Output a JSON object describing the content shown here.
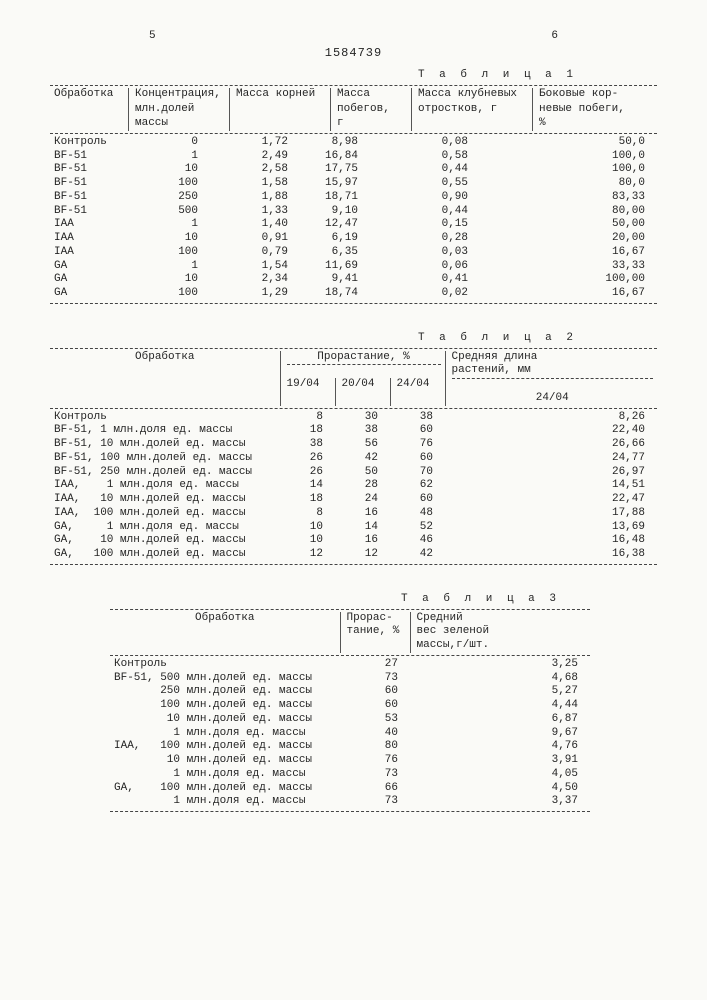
{
  "page_left": "5",
  "doc_number": "1584739",
  "page_right": "6",
  "table1": {
    "title": "Т а б л и ц а 1",
    "headers": {
      "c1": "Обработка",
      "c2a": "Концентрация,",
      "c2b": "млн.долей",
      "c2c": "массы",
      "c3": "Масса корней",
      "c4a": "Масса",
      "c4b": "побегов,",
      "c4c": "г",
      "c5a": "Масса клубневых",
      "c5b": "отростков, г",
      "c6a": "Боковые кор-",
      "c6b": "невые побеги,",
      "c6c": "%"
    },
    "rows": [
      [
        "Контроль",
        "0",
        "1,72",
        "8,98",
        "0,08",
        "50,0"
      ],
      [
        "BF-51",
        "1",
        "2,49",
        "16,84",
        "0,58",
        "100,0"
      ],
      [
        "BF-51",
        "10",
        "2,58",
        "17,75",
        "0,44",
        "100,0"
      ],
      [
        "BF-51",
        "100",
        "1,58",
        "15,97",
        "0,55",
        "80,0"
      ],
      [
        "BF-51",
        "250",
        "1,88",
        "18,71",
        "0,90",
        "83,33"
      ],
      [
        "BF-51",
        "500",
        "1,33",
        "9,10",
        "0,44",
        "80,00"
      ],
      [
        "IAA",
        "1",
        "1,40",
        "12,47",
        "0,15",
        "50,00"
      ],
      [
        "IAA",
        "10",
        "0,91",
        "6,19",
        "0,28",
        "20,00"
      ],
      [
        "IAA",
        "100",
        "0,79",
        "6,35",
        "0,03",
        "16,67"
      ],
      [
        "GA",
        "1",
        "1,54",
        "11,69",
        "0,06",
        "33,33"
      ],
      [
        "GA",
        "10",
        "2,34",
        "9,41",
        "0,41",
        "100,00"
      ],
      [
        "GA",
        "100",
        "1,29",
        "18,74",
        "0,02",
        "16,67"
      ]
    ]
  },
  "table2": {
    "title": "Т а б л и ц а 2",
    "headers": {
      "c1": "Обработка",
      "c2": "Прорастание, %",
      "c2a": "19/04",
      "c2b": "20/04",
      "c2c": "24/04",
      "c3a": "Средняя длина",
      "c3b": "растений, мм",
      "c3c": "24/04"
    },
    "rows": [
      [
        "Контроль",
        "8",
        "30",
        "38",
        "8,26"
      ],
      [
        "BF-51, 1 млн.доля ед. массы",
        "18",
        "38",
        "60",
        "22,40"
      ],
      [
        "BF-51, 10 млн.долей ед. массы",
        "38",
        "56",
        "76",
        "26,66"
      ],
      [
        "BF-51, 100 млн.долей ед. массы",
        "26",
        "42",
        "60",
        "24,77"
      ],
      [
        "BF-51, 250 млн.долей ед. массы",
        "26",
        "50",
        "70",
        "26,97"
      ],
      [
        "IAA,    1 млн.доля ед. массы",
        "14",
        "28",
        "62",
        "14,51"
      ],
      [
        "IAA,   10 млн.долей ед. массы",
        "18",
        "24",
        "60",
        "22,47"
      ],
      [
        "IAA,  100 млн.долей ед. массы",
        "8",
        "16",
        "48",
        "17,88"
      ],
      [
        "GA,     1 млн.доля ед. массы",
        "10",
        "14",
        "52",
        "13,69"
      ],
      [
        "GA,    10 млн.долей ед. массы",
        "10",
        "16",
        "46",
        "16,48"
      ],
      [
        "GA,   100 млн.долей ед. массы",
        "12",
        "12",
        "42",
        "16,38"
      ]
    ]
  },
  "table3": {
    "title": "Т а б л и ц а 3",
    "headers": {
      "c1": "Обработка",
      "c2a": "Прорас-",
      "c2b": "тание, %",
      "c3a": "Средний",
      "c3b": "вес зеленой",
      "c3c": "массы,г/шт."
    },
    "rows": [
      [
        "Контроль",
        "27",
        "3,25"
      ],
      [
        "BF-51, 500 млн.долей ед. массы",
        "73",
        "4,68"
      ],
      [
        "       250 млн.долей ед. массы",
        "60",
        "5,27"
      ],
      [
        "       100 млн.долей ед. массы",
        "60",
        "4,44"
      ],
      [
        "        10 млн.долей ед. массы",
        "53",
        "6,87"
      ],
      [
        "         1 млн.доля ед. массы",
        "40",
        "9,67"
      ],
      [
        "IAA,   100 млн.долей ед. массы",
        "80",
        "4,76"
      ],
      [
        "        10 млн.долей ед. массы",
        "76",
        "3,91"
      ],
      [
        "         1 млн.доля ед. массы",
        "73",
        "4,05"
      ],
      [
        "GA,    100 млн.долей ед. массы",
        "66",
        "4,50"
      ],
      [
        "         1 млн.доля ед. массы",
        "73",
        "3,37"
      ]
    ]
  }
}
